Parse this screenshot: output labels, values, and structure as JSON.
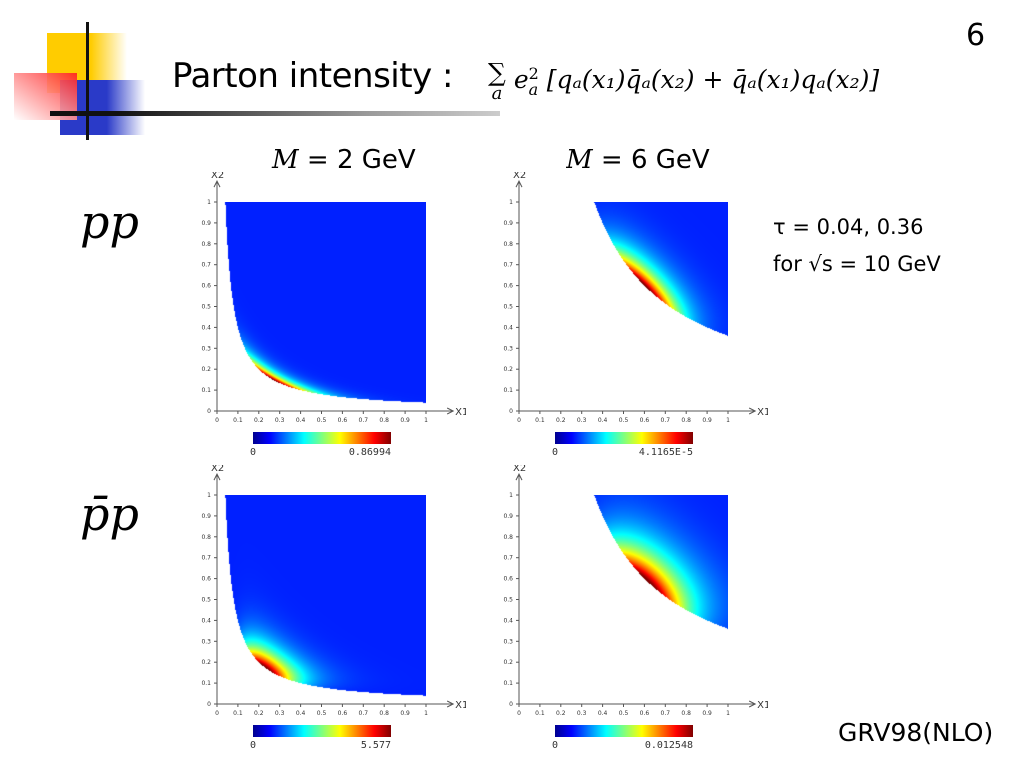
{
  "slide": {
    "page_number": "6",
    "title": "Parton intensity :",
    "formula": {
      "sum": "∑",
      "sum_index": "a",
      "body": "e",
      "body_sup": "2",
      "body_sub": "a",
      "bracket": "[qₐ(x₁)q̄ₐ(x₂) + q̄ₐ(x₁)qₐ(x₂)]"
    },
    "row_labels": [
      "pp",
      "p̄p"
    ],
    "column_labels": [
      {
        "var": "M",
        "rest": " = 2 GeV"
      },
      {
        "var": "M",
        "rest": " = 6 GeV"
      }
    ],
    "tau_line": "τ = 0.04, 0.36",
    "sqrt_line": "for √s = 10 GeV",
    "footer": "GRV98(NLO)"
  },
  "axes": {
    "xlabel": "X1",
    "ylabel": "X2",
    "ticks": [
      "0",
      "0.1",
      "0.2",
      "0.3",
      "0.4",
      "0.5",
      "0.6",
      "0.7",
      "0.8",
      "0.9",
      "1"
    ]
  },
  "chart_data": [
    {
      "type": "heatmap",
      "name": "pp M=2 GeV",
      "tau": 0.04,
      "colorbar_min": "0",
      "colorbar_max": "0.86994",
      "xlim": [
        0,
        1
      ],
      "ylim": [
        0,
        1
      ]
    },
    {
      "type": "heatmap",
      "name": "pp M=6 GeV",
      "tau": 0.36,
      "colorbar_min": "0",
      "colorbar_max": "4.1165E-5",
      "xlim": [
        0,
        1
      ],
      "ylim": [
        0,
        1
      ]
    },
    {
      "type": "heatmap",
      "name": "ppbar M=2 GeV",
      "tau": 0.04,
      "colorbar_min": "0",
      "colorbar_max": "5.577",
      "xlim": [
        0,
        1
      ],
      "ylim": [
        0,
        1
      ]
    },
    {
      "type": "heatmap",
      "name": "ppbar M=6 GeV",
      "tau": 0.36,
      "colorbar_min": "0",
      "colorbar_max": "0.012548",
      "xlim": [
        0,
        1
      ],
      "ylim": [
        0,
        1
      ]
    }
  ]
}
